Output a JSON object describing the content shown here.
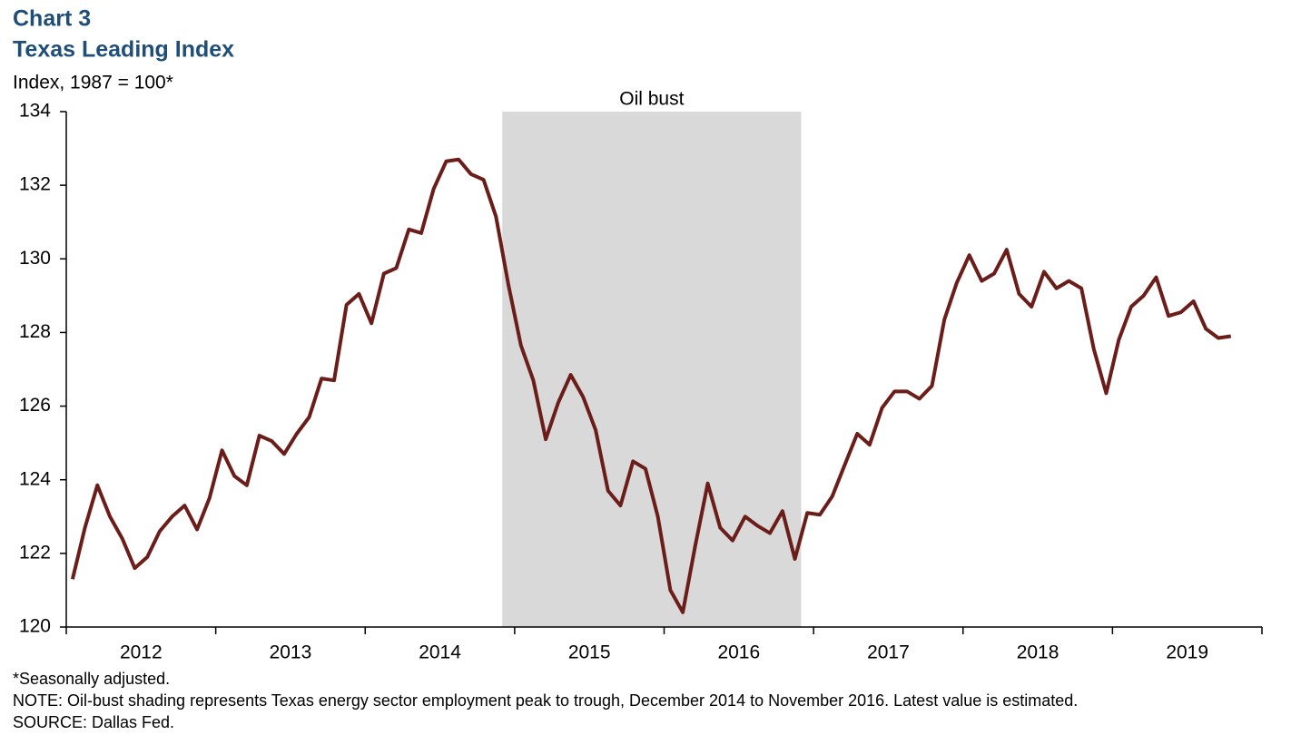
{
  "chart_data": {
    "type": "line",
    "title": "Chart 3",
    "subtitle": "Texas Leading Index",
    "ylabel": "Index, 1987 = 100*",
    "notes": [
      "*Seasonally adjusted.",
      "NOTE: Oil-bust shading represents Texas energy sector employment peak to trough, December 2014 to November 2016. Latest value is estimated.",
      "SOURCE: Dallas Fed."
    ],
    "shade": {
      "label": "Oil bust",
      "x": [
        2014.917,
        2016.917
      ],
      "color": "#d9d9d9"
    },
    "categories": [
      "2012",
      "2013",
      "2014",
      "2015",
      "2016",
      "2017",
      "2018",
      "2019"
    ],
    "xlim": [
      2012,
      2020
    ],
    "xticks": [
      2012,
      2013,
      2014,
      2015,
      2016,
      2017,
      2018,
      2019,
      2020
    ],
    "ylim": [
      120,
      134
    ],
    "yticks": [
      120,
      122,
      124,
      126,
      128,
      130,
      132,
      134
    ],
    "grid": false,
    "color": "#6b1d1a",
    "x": [
      2012.042,
      2012.125,
      2012.208,
      2012.292,
      2012.375,
      2012.458,
      2012.542,
      2012.625,
      2012.708,
      2012.792,
      2012.875,
      2012.958,
      2013.042,
      2013.125,
      2013.208,
      2013.292,
      2013.375,
      2013.458,
      2013.542,
      2013.625,
      2013.708,
      2013.792,
      2013.875,
      2013.958,
      2014.042,
      2014.125,
      2014.208,
      2014.292,
      2014.375,
      2014.458,
      2014.542,
      2014.625,
      2014.708,
      2014.792,
      2014.875,
      2014.958,
      2015.042,
      2015.125,
      2015.208,
      2015.292,
      2015.375,
      2015.458,
      2015.542,
      2015.625,
      2015.708,
      2015.792,
      2015.875,
      2015.958,
      2016.042,
      2016.125,
      2016.208,
      2016.292,
      2016.375,
      2016.458,
      2016.542,
      2016.625,
      2016.708,
      2016.792,
      2016.875,
      2016.958,
      2017.042,
      2017.125,
      2017.208,
      2017.292,
      2017.375,
      2017.458,
      2017.542,
      2017.625,
      2017.708,
      2017.792,
      2017.875,
      2017.958,
      2018.042,
      2018.125,
      2018.208,
      2018.292,
      2018.375,
      2018.458,
      2018.542,
      2018.625,
      2018.708,
      2018.792,
      2018.875,
      2018.958,
      2019.042,
      2019.125,
      2019.208,
      2019.292,
      2019.375,
      2019.458,
      2019.542,
      2019.625,
      2019.708,
      2019.792
    ],
    "values": [
      121.3,
      122.7,
      123.85,
      123.0,
      122.4,
      121.6,
      121.9,
      122.6,
      123.0,
      123.3,
      122.65,
      123.5,
      124.8,
      124.1,
      123.85,
      125.2,
      125.05,
      124.7,
      125.25,
      125.7,
      126.75,
      126.7,
      128.75,
      129.05,
      128.25,
      129.6,
      129.75,
      130.8,
      130.7,
      131.9,
      132.65,
      132.7,
      132.3,
      132.15,
      131.15,
      129.3,
      127.65,
      126.7,
      125.1,
      126.1,
      126.85,
      126.25,
      125.35,
      123.7,
      123.3,
      124.5,
      124.3,
      123.0,
      121.0,
      120.4,
      122.2,
      123.9,
      122.7,
      122.35,
      123.0,
      122.75,
      122.55,
      123.15,
      121.85,
      123.1,
      123.05,
      123.55,
      124.4,
      125.25,
      124.95,
      125.95,
      126.4,
      126.4,
      126.2,
      126.55,
      128.35,
      129.35,
      130.1,
      129.4,
      129.6,
      130.25,
      129.05,
      128.7,
      129.65,
      129.2,
      129.4,
      129.2,
      127.55,
      126.35,
      127.8,
      128.7,
      129.0,
      129.5,
      128.45,
      128.55,
      128.85,
      128.1,
      127.85,
      127.9
    ]
  }
}
